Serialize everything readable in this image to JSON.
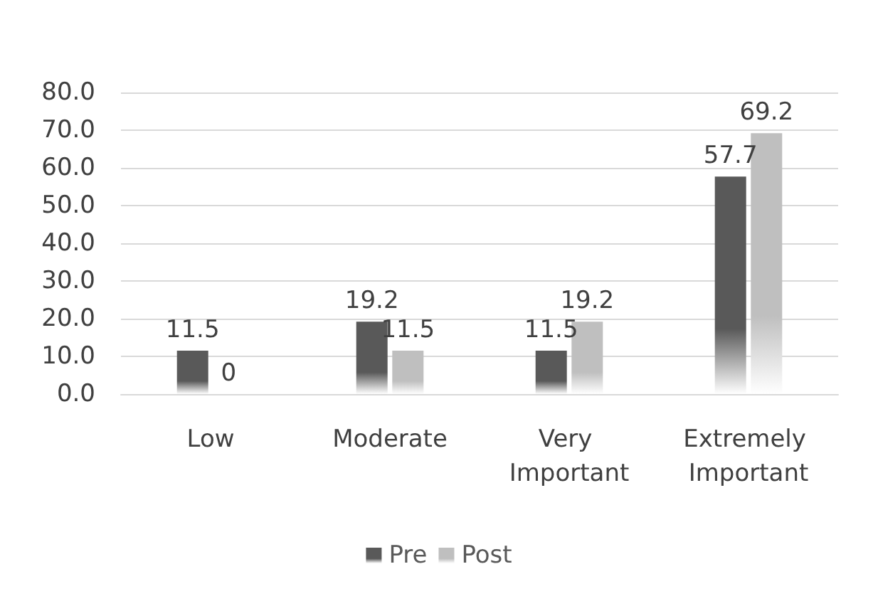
{
  "chart_data": {
    "type": "bar",
    "categories": [
      "Low",
      "Moderate",
      "Very Important",
      "Extremely Important"
    ],
    "series": [
      {
        "name": "Pre",
        "color": "#595959",
        "values": [
          11.5,
          19.2,
          11.5,
          57.7
        ]
      },
      {
        "name": "Post",
        "color": "#bfbfbf",
        "values": [
          0,
          11.5,
          19.2,
          69.2
        ]
      }
    ],
    "ylim": [
      0,
      80
    ],
    "yticks": [
      {
        "value": 0,
        "label": "0.0"
      },
      {
        "value": 10,
        "label": "10.0"
      },
      {
        "value": 20,
        "label": "20.0"
      },
      {
        "value": 30,
        "label": "30.0"
      },
      {
        "value": 40,
        "label": "40.0"
      },
      {
        "value": 50,
        "label": "50.0"
      },
      {
        "value": 60,
        "label": "60.0"
      },
      {
        "value": 70,
        "label": "70.0"
      },
      {
        "value": 80,
        "label": "80.0"
      }
    ],
    "grid": "y",
    "legend": "bottom",
    "data_labels": true
  }
}
